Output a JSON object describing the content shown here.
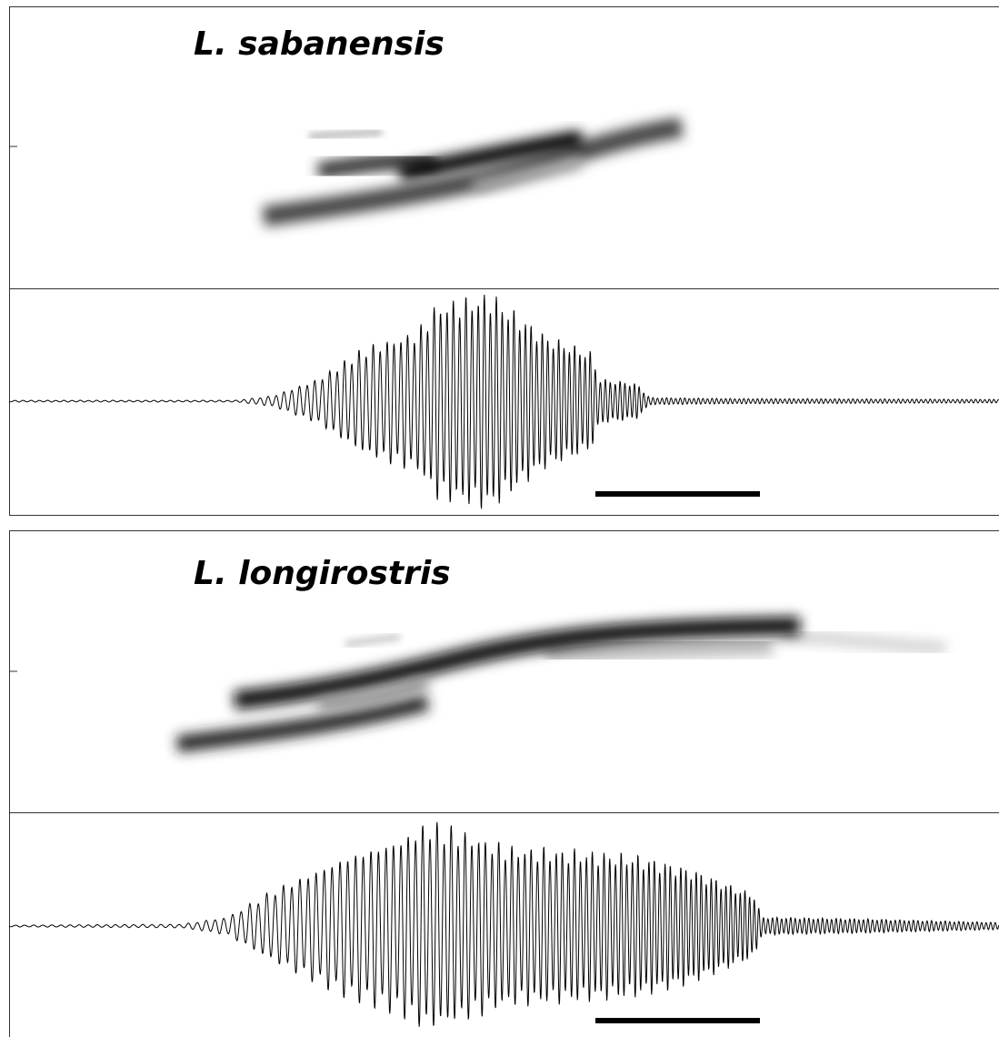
{
  "panels": [
    {
      "label": "L. sabanensis"
    },
    {
      "label": "L. longirostris"
    }
  ]
}
